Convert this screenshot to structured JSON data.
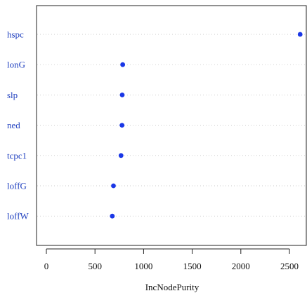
{
  "chart_data": {
    "type": "scatter",
    "title": "",
    "xlabel": "IncNodePurity",
    "ylabel": "",
    "categories": [
      "hspc",
      "lonG",
      "slp",
      "ned",
      "tcpc1",
      "loffG",
      "loffW"
    ],
    "values": [
      2610,
      785,
      780,
      778,
      768,
      690,
      678
    ],
    "xlim": [
      -100,
      2650
    ],
    "xticks": [
      0,
      500,
      1000,
      1500,
      2000,
      2500
    ],
    "grid": "dotted horizontal guide lines",
    "legend": "none",
    "colors": {
      "points": "#1a37e6",
      "labels": "#1f3fbf",
      "frame": "#222222",
      "guides": "#bbbbbb"
    }
  }
}
